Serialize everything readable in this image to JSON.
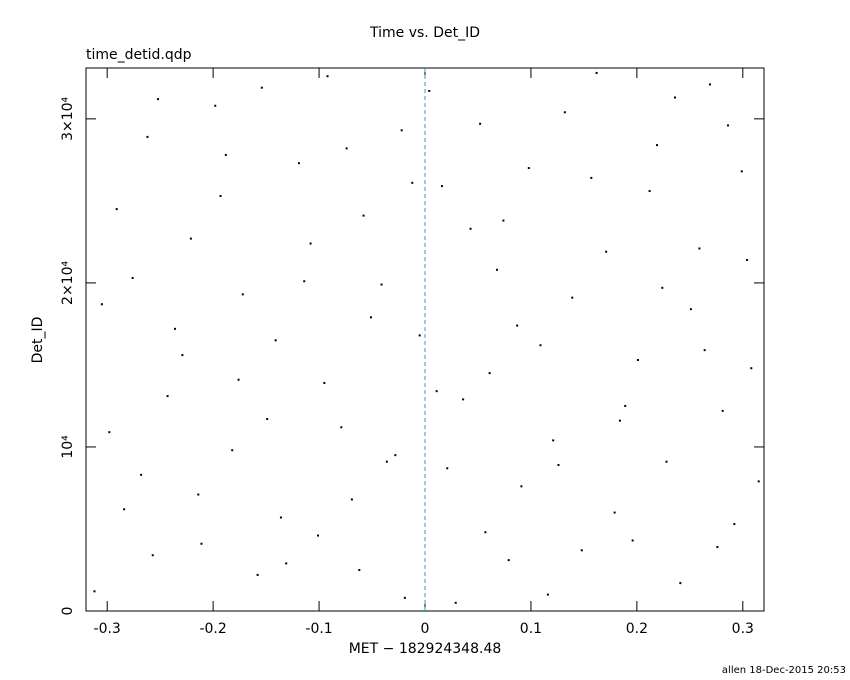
{
  "chart_data": {
    "type": "scatter",
    "title": "Time vs. Det_ID",
    "subtitle": "time_detid.qdp",
    "xlabel": "MET − 182924348.48",
    "ylabel": "Det_ID",
    "footer": "allen 18-Dec-2015 20:53",
    "color": "#000000",
    "xlim": [
      -0.32,
      0.32
    ],
    "ylim": [
      0,
      33100
    ],
    "xticks": [
      -0.3,
      -0.2,
      -0.1,
      0,
      0.1,
      0.2,
      0.3
    ],
    "yticks": [
      0,
      {
        "value": 10000,
        "label": "10⁴"
      },
      {
        "value": 20000,
        "label": "2×10⁴"
      },
      {
        "value": 30000,
        "label": "3×10⁴"
      }
    ],
    "vline": {
      "x": 0,
      "color": "#1fa7b5"
    },
    "x": [
      -0.312,
      -0.291,
      -0.268,
      -0.252,
      -0.229,
      -0.211,
      -0.188,
      -0.172,
      -0.149,
      -0.131,
      -0.108,
      -0.092,
      -0.069,
      -0.051,
      -0.028,
      -0.012,
      0.011,
      0.029,
      0.052,
      0.068,
      0.091,
      0.109,
      0.132,
      0.148,
      0.171,
      0.189,
      0.212,
      0.228,
      0.251,
      0.269,
      0.292,
      0.308,
      -0.305,
      -0.284,
      -0.262,
      -0.243,
      -0.221,
      -0.198,
      -0.182,
      -0.158,
      -0.141,
      -0.119,
      -0.101,
      -0.079,
      -0.058,
      -0.041,
      -0.019,
      0.004,
      0.021,
      0.043,
      0.061,
      0.079,
      0.098,
      0.121,
      0.139,
      0.162,
      0.179,
      0.201,
      0.219,
      0.241,
      0.259,
      0.281,
      0.299,
      0.315,
      -0.298,
      -0.276,
      -0.257,
      -0.236,
      -0.214,
      -0.193,
      -0.176,
      -0.154,
      -0.136,
      -0.114,
      -0.095,
      -0.074,
      -0.062,
      -0.036,
      -0.022,
      -0.005,
      0.016,
      0.036,
      0.057,
      0.074,
      0.087,
      0.116,
      0.126,
      0.157,
      0.184,
      0.196,
      0.224,
      0.236,
      0.264,
      0.276,
      0.304,
      0.286
    ],
    "values": [
      1200,
      24500,
      8300,
      31200,
      15600,
      4100,
      27800,
      19300,
      11700,
      2900,
      22400,
      32600,
      6800,
      17900,
      9500,
      26100,
      13400,
      500,
      29700,
      20800,
      7600,
      16200,
      30400,
      3700,
      21900,
      12500,
      25600,
      9100,
      18400,
      32100,
      5300,
      14800,
      18700,
      6200,
      28900,
      13100,
      22700,
      30800,
      9800,
      2200,
      16500,
      27300,
      4600,
      11200,
      24100,
      19900,
      800,
      31700,
      8700,
      23300,
      14500,
      3100,
      27000,
      10400,
      19100,
      32800,
      6000,
      15300,
      28400,
      1700,
      22100,
      12200,
      26800,
      7900,
      10900,
      20300,
      3400,
      17200,
      7100,
      25300,
      14100,
      31900,
      5700,
      20100,
      13900,
      28200,
      2500,
      9100,
      29300,
      16800,
      25900,
      12900,
      4800,
      23800,
      17400,
      1000,
      8900,
      26400,
      11600,
      4300,
      19700,
      31300,
      15900,
      3900,
      21400,
      29600
    ]
  }
}
